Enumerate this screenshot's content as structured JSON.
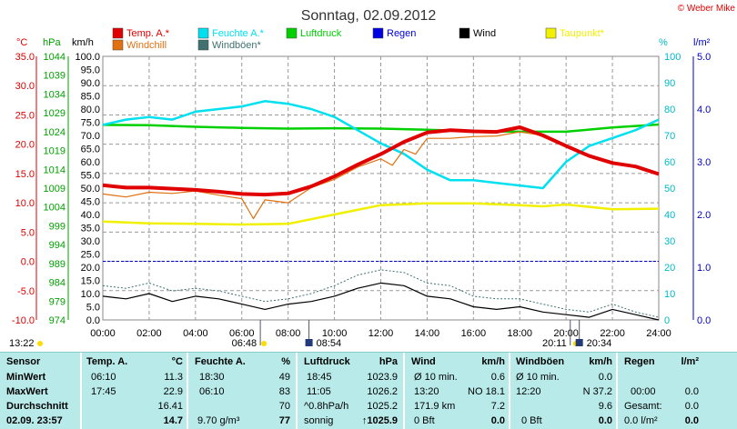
{
  "page_title": "Sonntag, 02.09.2012",
  "copyright": "© Weber Mike",
  "legend": [
    {
      "label": "Temp. A.*",
      "color": "#e00000"
    },
    {
      "label": "Feuchte A.*",
      "color": "#00e0f0"
    },
    {
      "label": "Luftdruck",
      "color": "#00d000"
    },
    {
      "label": "Regen",
      "color": "#0000e0"
    },
    {
      "label": "Wind",
      "color": "#000000"
    },
    {
      "label": "Taupunkt*",
      "color": "#f0f000"
    },
    {
      "label": "Windchill",
      "color": "#e07010"
    },
    {
      "label": "Windböen*",
      "color": "#407070"
    }
  ],
  "axis_units": {
    "temp": "°C",
    "pressure": "hPa",
    "wind": "km/h",
    "humidity": "%",
    "rain": "l/m²"
  },
  "chart_data": {
    "type": "line",
    "x_ticks": [
      "00:00",
      "02:00",
      "04:00",
      "06:00",
      "08:00",
      "10:00",
      "12:00",
      "14:00",
      "16:00",
      "18:00",
      "20:00",
      "22:00",
      "24:00"
    ],
    "temp_ticks": [
      "35.0",
      "30.0",
      "25.0",
      "20.0",
      "15.0",
      "10.0",
      "5.0",
      "0.0",
      "-5.0",
      "-10.0"
    ],
    "pressure_ticks": [
      "1044",
      "1039",
      "1034",
      "1029",
      "1024",
      "1019",
      "1014",
      "1009",
      "1004",
      "999",
      "994",
      "989",
      "984",
      "979",
      "974"
    ],
    "wind_ticks": [
      "100.0",
      "95.0",
      "90.0",
      "85.0",
      "80.0",
      "75.0",
      "70.0",
      "65.0",
      "60.0",
      "55.0",
      "50.0",
      "45.0",
      "40.0",
      "35.0",
      "30.0",
      "25.0",
      "20.0",
      "15.0",
      "10.0",
      "5.0",
      "0.0"
    ],
    "humidity_ticks": [
      "100",
      "90",
      "80",
      "70",
      "60",
      "50",
      "40",
      "30",
      "20",
      "10",
      "0"
    ],
    "rain_ticks": [
      "5.0",
      "4.0",
      "3.0",
      "2.0",
      "1.0",
      "0.0"
    ],
    "ylim_wind": [
      0,
      100
    ],
    "series": [
      {
        "name": "Temp. A.*",
        "color": "#e00000",
        "unit": "°C",
        "x": [
          0,
          1,
          2,
          3,
          4,
          5,
          6,
          7,
          8,
          9,
          10,
          11,
          12,
          13,
          14,
          15,
          16,
          17,
          18,
          19,
          20,
          21,
          22,
          23,
          24
        ],
        "y": [
          13.0,
          12.6,
          12.6,
          12.4,
          12.2,
          11.9,
          11.5,
          11.4,
          11.6,
          12.8,
          14.5,
          16.5,
          18.3,
          20.4,
          22.0,
          22.4,
          22.2,
          22.1,
          22.9,
          21.5,
          19.7,
          18.0,
          16.8,
          16.2,
          14.9
        ]
      },
      {
        "name": "Feuchte A.*",
        "color": "#00e0f0",
        "unit": "%",
        "x": [
          0,
          1,
          2,
          3,
          4,
          5,
          6,
          7,
          8,
          9,
          10,
          11,
          12,
          13,
          14,
          15,
          16,
          17,
          18,
          19,
          20,
          21,
          22,
          23,
          24
        ],
        "y": [
          74,
          76,
          77,
          76,
          79,
          80,
          81,
          83,
          82,
          80,
          77,
          72,
          67,
          63,
          57,
          53,
          53,
          52,
          51,
          50,
          60,
          66,
          69,
          72,
          76
        ]
      },
      {
        "name": "Luftdruck",
        "color": "#00d000",
        "unit": "hPa",
        "x": [
          0,
          2,
          4,
          6,
          8,
          10,
          12,
          14,
          16,
          18,
          20,
          22,
          24
        ],
        "y": [
          1025.8,
          1025.7,
          1025.3,
          1025.0,
          1024.8,
          1024.9,
          1024.8,
          1024.5,
          1024.1,
          1024.0,
          1024.0,
          1025.1,
          1025.9
        ]
      },
      {
        "name": "Taupunkt*",
        "color": "#f0f000",
        "unit": "°C",
        "x": [
          0,
          2,
          4,
          6,
          8,
          10,
          12,
          14,
          16,
          18,
          19,
          20,
          22,
          24
        ],
        "y": [
          6.8,
          6.5,
          6.4,
          6.3,
          6.4,
          8.0,
          9.6,
          9.9,
          9.9,
          9.6,
          9.4,
          9.7,
          8.9,
          9.0
        ]
      },
      {
        "name": "Windchill",
        "color": "#e07010",
        "unit": "°C",
        "x": [
          0,
          1,
          2,
          3,
          4,
          5,
          6,
          6.5,
          7,
          8,
          9,
          10,
          11,
          12,
          12.5,
          13,
          13.5,
          14,
          15,
          16,
          17,
          18,
          19,
          20,
          21,
          22,
          23,
          24
        ],
        "y": [
          11.5,
          11.0,
          11.8,
          11.6,
          12.0,
          11.3,
          10.7,
          7.3,
          10.5,
          10.0,
          12.6,
          14.0,
          16.1,
          17.5,
          16.4,
          19.1,
          18.3,
          21.0,
          21.0,
          21.3,
          21.4,
          22.1,
          21.5,
          19.5,
          18.0,
          16.8,
          16.2,
          14.9
        ]
      },
      {
        "name": "Wind",
        "color": "#000000",
        "unit": "km/h",
        "x": [
          0,
          1,
          2,
          3,
          4,
          5,
          6,
          7,
          8,
          9,
          10,
          11,
          12,
          13,
          14,
          15,
          16,
          17,
          18,
          19,
          20,
          21,
          22,
          23,
          24
        ],
        "y": [
          9,
          8,
          10,
          7,
          9,
          8,
          6,
          4,
          6,
          7,
          9,
          12,
          14,
          13,
          9,
          8,
          5,
          4,
          5,
          3,
          2,
          1,
          4,
          2,
          0
        ]
      },
      {
        "name": "Windböen*",
        "color": "#407070",
        "unit": "km/h",
        "x": [
          0,
          1,
          2,
          3,
          4,
          5,
          6,
          7,
          8,
          9,
          10,
          11,
          12,
          13,
          14,
          15,
          16,
          17,
          18,
          19,
          20,
          21,
          22,
          23,
          24
        ],
        "y": [
          13,
          12,
          14,
          11,
          12,
          11,
          9,
          7,
          8,
          10,
          13,
          17,
          19,
          18,
          14,
          13,
          9,
          8,
          8,
          6,
          4,
          3,
          6,
          3,
          1
        ]
      }
    ],
    "sun_markers": [
      {
        "label": "06:48",
        "x": 6.8
      },
      {
        "label": "08:54",
        "x": 8.9
      },
      {
        "label": "20:11",
        "x": 20.18
      },
      {
        "label": "20:34",
        "x": 20.57
      }
    ],
    "left_time_label": "13:22"
  },
  "table": {
    "sensor": {
      "header": "Sensor",
      "rows": [
        "MinWert",
        "MaxWert",
        "Durchschnitt",
        "02.09. 23:57"
      ]
    },
    "temp": {
      "header": "Temp. A.",
      "unit": "°C",
      "min_time": "06:10",
      "min": "11.3",
      "max_time": "17:45",
      "max": "22.9",
      "avg": "16.41",
      "current": "14.7"
    },
    "humidity": {
      "header": "Feuchte A.",
      "unit": "%",
      "min_time": "18:30",
      "min": "49",
      "max_time": "06:10",
      "max": "83",
      "avg": "70",
      "extra": "9.70 g/m³",
      "current": "77"
    },
    "pressure": {
      "header": "Luftdruck",
      "unit": "hPa",
      "min_time": "18:45",
      "min": "1023.9",
      "max_time": "11:05",
      "max": "1026.2",
      "trend": "^0.8hPa/h",
      "avg": "1025.2",
      "forecast": "sonnig",
      "current": "↑1025.9"
    },
    "wind": {
      "header": "Wind",
      "unit": "km/h",
      "r1a": "Ø 10 min.",
      "r1b": "0.6",
      "r2a": "13:20",
      "r2b": "NO 18.1",
      "r3a": "171.9 km",
      "r3b": "7.2",
      "r4a": "0 Bft",
      "current": "0.0"
    },
    "gusts": {
      "header": "Windböen",
      "unit": "km/h",
      "r1a": "Ø 10 min.",
      "r1b": "0.0",
      "r2a": "12:20",
      "r2b": "N 37.2",
      "r3b": "9.6",
      "r4a": "0 Bft",
      "current": "0.0"
    },
    "rain": {
      "header": "Regen",
      "unit": "l/m²",
      "r2a": "00:00",
      "r2b": "0.0",
      "r3a": "Gesamt:",
      "r3b": "0.0",
      "r4a": "0.0 l/m²",
      "current": "0.0"
    }
  }
}
